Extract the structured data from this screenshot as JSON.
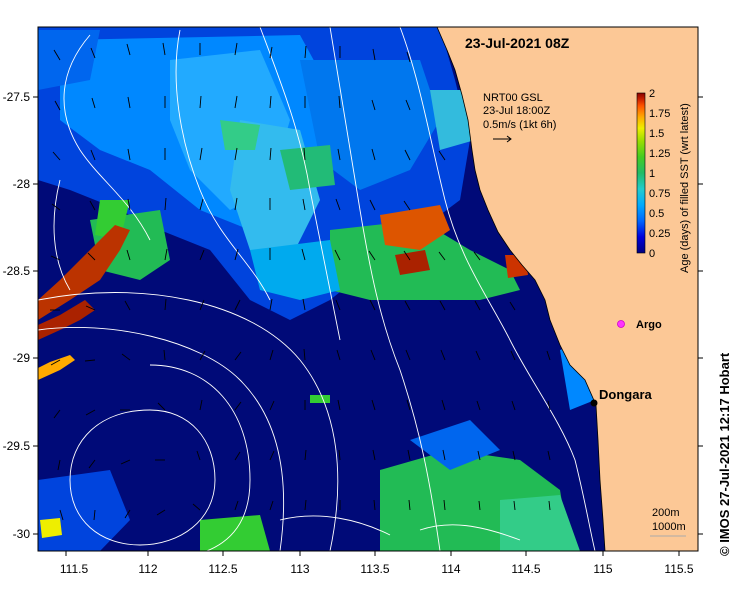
{
  "title": "23-Jul-2021 08Z",
  "current_box": {
    "line1": "NRT00 GSL",
    "line2": "23-Jul 18:00Z",
    "line3": "0.5m/s (1kt 6h)"
  },
  "colorbar": {
    "label": "Age (days) of filled SST (wrt latest)",
    "ticks": [
      "2",
      "1.75",
      "1.5",
      "1.25",
      "1",
      "0.75",
      "0.5",
      "0.25",
      "0"
    ],
    "colors": [
      "#000080",
      "#0000dd",
      "#0066ff",
      "#00aaff",
      "#22cccc",
      "#22bb66",
      "#44cc22",
      "#99dd00",
      "#eeee00",
      "#ffaa00",
      "#ff5500",
      "#cc2200",
      "#880000"
    ]
  },
  "x_ticks": [
    "111.5",
    "112",
    "112.5",
    "113",
    "113.5",
    "114",
    "114.5",
    "115",
    "115.5"
  ],
  "y_ticks": [
    "-27.5",
    "-28",
    "-28.5",
    "-29",
    "-29.5",
    "-30"
  ],
  "places": {
    "argo": "Argo",
    "dongara": "Dongara"
  },
  "isobath_legend": {
    "line1": "200m",
    "line2": "1000m"
  },
  "credit": "© IMOS 27-Jul-2021 12:17 Hobart",
  "colors": {
    "land": "#fcc896",
    "deep_ocean": "#000a78",
    "argo": "#ff33ff"
  }
}
